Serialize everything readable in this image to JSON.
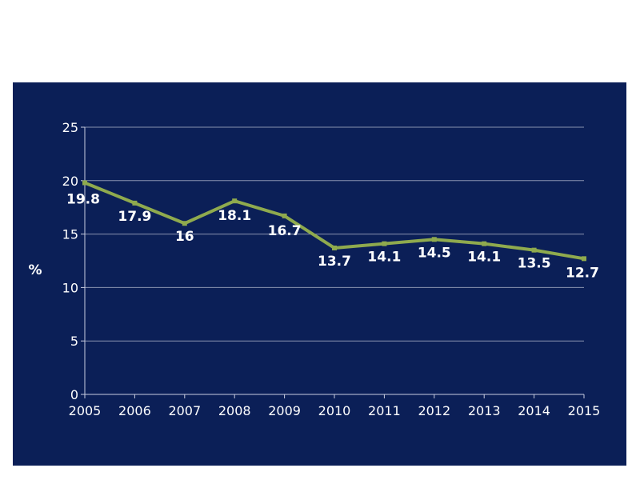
{
  "title_line1": "",
  "title_line2": "",
  "colors": {
    "background": "#0b1f57",
    "line": "#8faa4e",
    "text": "#ffffff",
    "grid": "#8a93b0"
  },
  "chart_data": {
    "type": "line",
    "title": "",
    "xlabel": "",
    "ylabel": "%",
    "ylim": [
      0,
      25
    ],
    "yticks": [
      0,
      5,
      10,
      15,
      20,
      25
    ],
    "grid": true,
    "x": [
      "2005",
      "2006",
      "2007",
      "2008",
      "2009",
      "2010",
      "2011",
      "2012",
      "2013",
      "2014",
      "2015"
    ],
    "series": [
      {
        "values": [
          19.8,
          17.9,
          16,
          18.1,
          16.7,
          13.7,
          14.1,
          14.5,
          14.1,
          13.5,
          12.7
        ],
        "labels": [
          "19.8",
          "17.9",
          "16",
          "18.1",
          "16.7",
          "13.7",
          "14.1",
          "14.5",
          "14.1",
          "13.5",
          "12.7"
        ]
      }
    ]
  }
}
